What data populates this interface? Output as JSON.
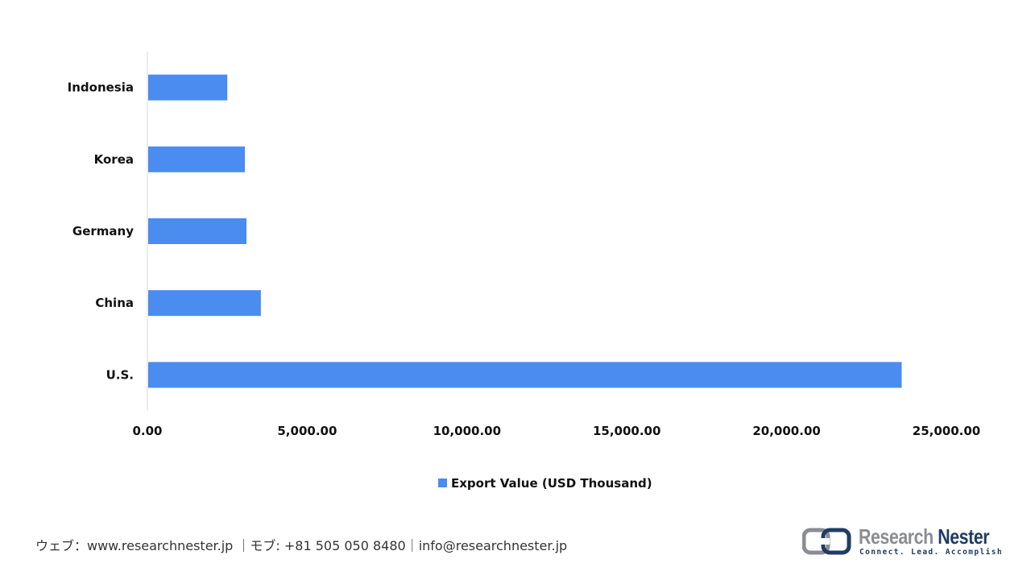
{
  "chart_data": {
    "type": "bar",
    "orientation": "horizontal",
    "categories": [
      "Indonesia",
      "Korea",
      "Germany",
      "China",
      "U.S."
    ],
    "series": [
      {
        "name": "Export Value (USD Thousand)",
        "values": [
          2500,
          3050,
          3100,
          3550,
          23600
        ],
        "color": "#4a8cef"
      }
    ],
    "xlim": [
      0,
      25000
    ],
    "xticks": [
      "0.00",
      "5,000.00",
      "10,000.00",
      "15,000.00",
      "20,000.00",
      "25,000.00"
    ],
    "xlabel": "",
    "ylabel": "",
    "title": "",
    "grid": false,
    "legend_position": "bottom"
  },
  "footer": {
    "contact": "ウェブ：www.researchnester.jp ｜モブ: +81 505 050 8480｜info@researchnester.jp"
  },
  "logo": {
    "name_part1": "Research",
    "name_part2": "Nester",
    "tagline": "Connect. Lead. Accomplish"
  }
}
